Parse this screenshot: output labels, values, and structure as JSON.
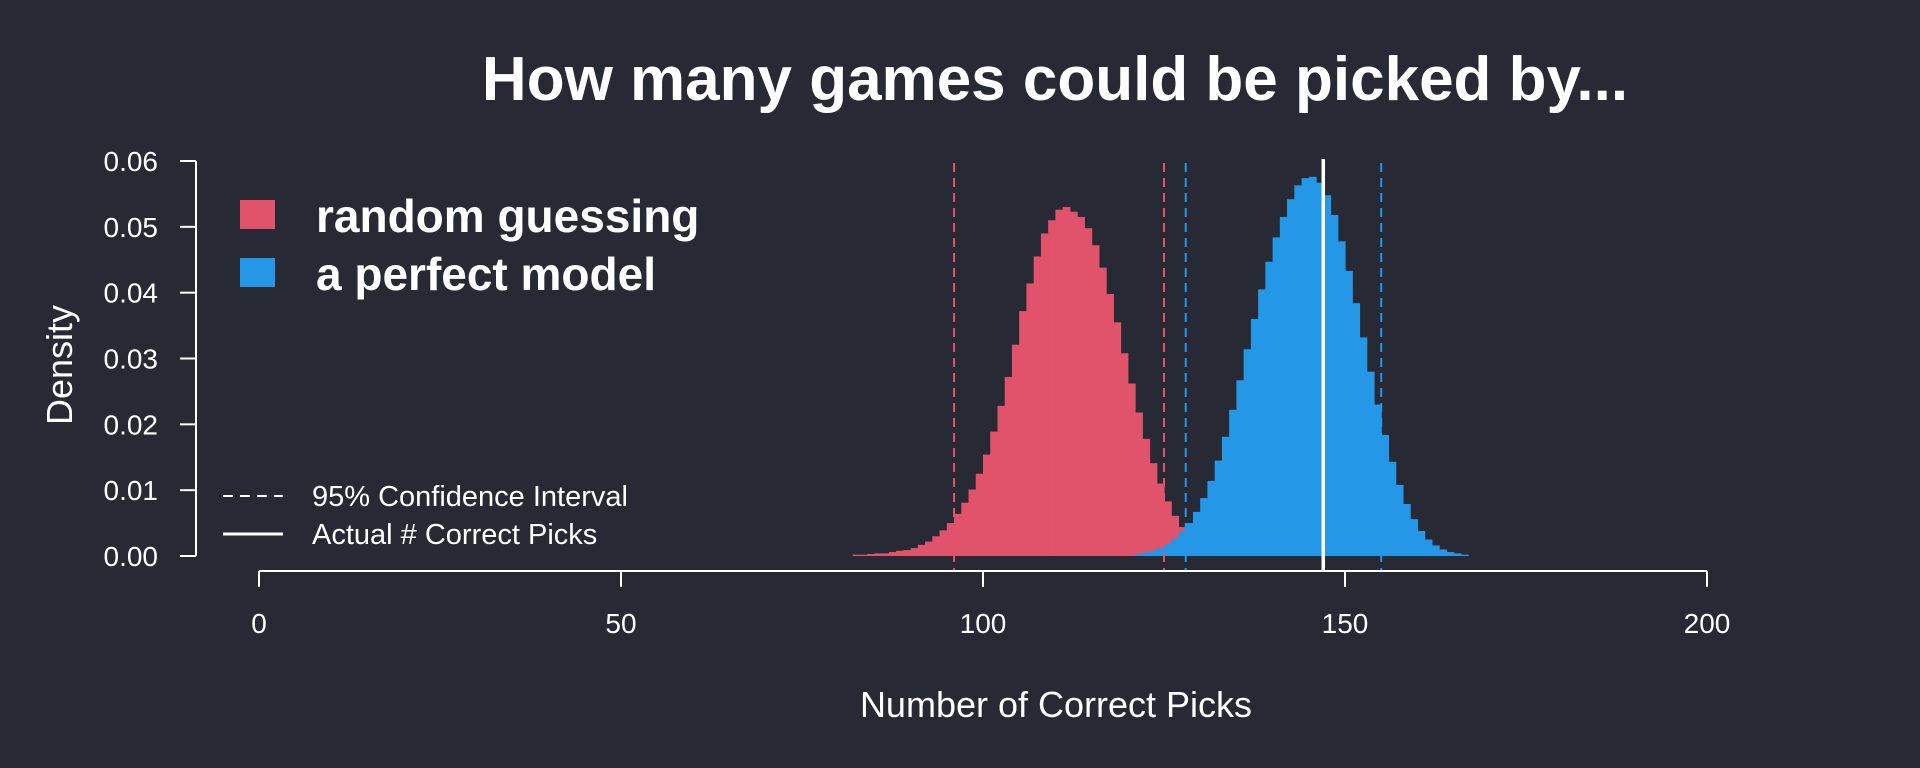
{
  "chart_data": {
    "type": "histogram",
    "title": "How many games could be picked by...",
    "xlabel": "Number of Correct Picks",
    "ylabel": "Density",
    "xlim": [
      0,
      200
    ],
    "ylim": [
      0,
      0.06
    ],
    "x_ticks": [
      0,
      50,
      100,
      150,
      200
    ],
    "y_ticks": [
      0.0,
      0.01,
      0.02,
      0.03,
      0.04,
      0.05,
      0.06
    ],
    "y_tick_labels": [
      "0.00",
      "0.01",
      "0.02",
      "0.03",
      "0.04",
      "0.05",
      "0.06"
    ],
    "grid": false,
    "legend_position": "top-left",
    "legend": [
      {
        "label": "random guessing",
        "color": "#E0536A"
      },
      {
        "label": "a perfect model",
        "color": "#2497E6"
      }
    ],
    "line_legend": [
      {
        "label": "95% Confidence Interval",
        "style": "dashed"
      },
      {
        "label": "Actual # Correct Picks",
        "style": "solid"
      }
    ],
    "series": [
      {
        "name": "random guessing",
        "color": "#E0536A",
        "bin_start": 82,
        "bin_width": 1,
        "density": [
          0.0002,
          0.0002,
          0.0003,
          0.0004,
          0.0004,
          0.0006,
          0.0008,
          0.0009,
          0.0012,
          0.0017,
          0.0022,
          0.003,
          0.0039,
          0.005,
          0.0064,
          0.0081,
          0.0101,
          0.0125,
          0.0154,
          0.0189,
          0.0228,
          0.0272,
          0.0321,
          0.0372,
          0.0414,
          0.0455,
          0.049,
          0.051,
          0.0526,
          0.053,
          0.0523,
          0.0515,
          0.0498,
          0.0472,
          0.0438,
          0.0398,
          0.0355,
          0.0308,
          0.0262,
          0.0218,
          0.0178,
          0.0141,
          0.011,
          0.0083,
          0.0061,
          0.0044,
          0.0031,
          0.0022,
          0.0015,
          0.001,
          0.0007,
          0.0004,
          0.0003,
          0.0002,
          0.0001
        ]
      },
      {
        "name": "a perfect model",
        "color": "#2497E6",
        "bin_start": 121,
        "bin_width": 1,
        "density": [
          0.0003,
          0.0005,
          0.0008,
          0.0012,
          0.0018,
          0.0026,
          0.0037,
          0.005,
          0.0067,
          0.0088,
          0.0114,
          0.0145,
          0.0181,
          0.0222,
          0.0267,
          0.0314,
          0.036,
          0.0405,
          0.0447,
          0.0484,
          0.0515,
          0.0542,
          0.0563,
          0.0574,
          0.0576,
          0.0567,
          0.0548,
          0.0518,
          0.0478,
          0.0433,
          0.0384,
          0.0332,
          0.028,
          0.023,
          0.0184,
          0.0143,
          0.0108,
          0.0079,
          0.0056,
          0.0038,
          0.0025,
          0.0016,
          0.001,
          0.0006,
          0.0004,
          0.0002
        ]
      }
    ],
    "vertical_lines": [
      {
        "x": 96,
        "style": "dashed",
        "color": "#E0536A"
      },
      {
        "x": 125,
        "style": "dashed",
        "color": "#E0536A"
      },
      {
        "x": 128,
        "style": "dashed",
        "color": "#2497E6"
      },
      {
        "x": 155,
        "style": "dashed",
        "color": "#2497E6"
      },
      {
        "x": 147,
        "style": "solid",
        "color": "#FFFFFF"
      }
    ]
  }
}
